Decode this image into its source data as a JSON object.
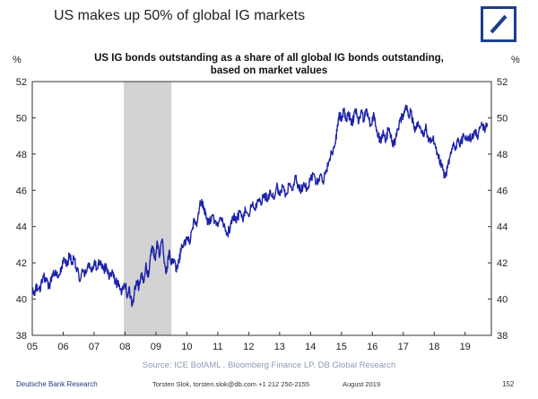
{
  "header": {
    "title": "US makes up 50% of global IG markets"
  },
  "footer": {
    "source": "Source: ICE BofAML , Bloomberg Finance LP, DB Global Research",
    "brand": "Deutsche Bank Research",
    "contact": "Torsten Slok, torsten.slok@db.com  +1 212 250-2155",
    "date": "August 2019",
    "page": "152"
  },
  "colors": {
    "line": "#1c22a8",
    "shade": "#d3d3d3",
    "logo": "#1b3f8b"
  },
  "chart_data": {
    "type": "line",
    "title": "US IG bonds outstanding as a share of all global IG bonds outstanding,\nbased on market values",
    "ylabel_left": "%",
    "ylabel_right": "%",
    "ylim": [
      38,
      52
    ],
    "yticks": [
      38,
      40,
      42,
      44,
      46,
      48,
      50,
      52
    ],
    "xlim": [
      2005,
      2019.85
    ],
    "xticks": [
      {
        "value": 2005,
        "label": "05"
      },
      {
        "value": 2006,
        "label": "06"
      },
      {
        "value": 2007,
        "label": "07"
      },
      {
        "value": 2008,
        "label": "08"
      },
      {
        "value": 2009,
        "label": "09"
      },
      {
        "value": 2010,
        "label": "10"
      },
      {
        "value": 2011,
        "label": "11"
      },
      {
        "value": 2012,
        "label": "12"
      },
      {
        "value": 2013,
        "label": "13"
      },
      {
        "value": 2014,
        "label": "14"
      },
      {
        "value": 2015,
        "label": "15"
      },
      {
        "value": 2016,
        "label": "16"
      },
      {
        "value": 2017,
        "label": "17"
      },
      {
        "value": 2018,
        "label": "18"
      },
      {
        "value": 2019,
        "label": "19"
      }
    ],
    "shaded_region": {
      "start": 2007.96,
      "end": 2009.5
    },
    "series": [
      {
        "color": "#1c22a8",
        "points": [
          [
            2005.0,
            40.6
          ],
          [
            2005.08,
            40.2
          ],
          [
            2005.15,
            40.8
          ],
          [
            2005.25,
            40.4
          ],
          [
            2005.35,
            41.3
          ],
          [
            2005.45,
            41.0
          ],
          [
            2005.55,
            40.7
          ],
          [
            2005.65,
            41.4
          ],
          [
            2005.75,
            41.6
          ],
          [
            2005.85,
            41.2
          ],
          [
            2005.95,
            41.8
          ],
          [
            2006.05,
            42.2
          ],
          [
            2006.12,
            41.8
          ],
          [
            2006.2,
            42.5
          ],
          [
            2006.28,
            42.0
          ],
          [
            2006.35,
            42.3
          ],
          [
            2006.45,
            41.6
          ],
          [
            2006.55,
            41.0
          ],
          [
            2006.62,
            41.5
          ],
          [
            2006.7,
            41.3
          ],
          [
            2006.8,
            41.9
          ],
          [
            2006.9,
            41.6
          ],
          [
            2007.0,
            42.0
          ],
          [
            2007.1,
            41.7
          ],
          [
            2007.2,
            42.1
          ],
          [
            2007.3,
            41.6
          ],
          [
            2007.4,
            41.8
          ],
          [
            2007.5,
            41.2
          ],
          [
            2007.6,
            41.5
          ],
          [
            2007.7,
            41.0
          ],
          [
            2007.8,
            40.7
          ],
          [
            2007.9,
            40.4
          ],
          [
            2008.0,
            40.8
          ],
          [
            2008.08,
            40.2
          ],
          [
            2008.15,
            40.5
          ],
          [
            2008.22,
            39.6
          ],
          [
            2008.3,
            40.3
          ],
          [
            2008.38,
            41.0
          ],
          [
            2008.45,
            40.6
          ],
          [
            2008.52,
            41.4
          ],
          [
            2008.6,
            41.0
          ],
          [
            2008.68,
            42.0
          ],
          [
            2008.75,
            41.2
          ],
          [
            2008.82,
            42.4
          ],
          [
            2008.9,
            42.8
          ],
          [
            2008.97,
            42.2
          ],
          [
            2009.05,
            43.1
          ],
          [
            2009.12,
            42.4
          ],
          [
            2009.2,
            43.3
          ],
          [
            2009.28,
            42.0
          ],
          [
            2009.35,
            41.5
          ],
          [
            2009.42,
            42.6
          ],
          [
            2009.5,
            41.9
          ],
          [
            2009.58,
            42.2
          ],
          [
            2009.66,
            41.5
          ],
          [
            2009.74,
            42.0
          ],
          [
            2009.82,
            42.8
          ],
          [
            2009.9,
            43.0
          ],
          [
            2010.0,
            43.4
          ],
          [
            2010.08,
            43.1
          ],
          [
            2010.16,
            43.8
          ],
          [
            2010.24,
            44.4
          ],
          [
            2010.32,
            44.0
          ],
          [
            2010.4,
            45.0
          ],
          [
            2010.48,
            45.5
          ],
          [
            2010.56,
            44.9
          ],
          [
            2010.64,
            44.4
          ],
          [
            2010.72,
            44.1
          ],
          [
            2010.8,
            44.6
          ],
          [
            2010.9,
            44.3
          ],
          [
            2011.0,
            44.0
          ],
          [
            2011.1,
            44.5
          ],
          [
            2011.2,
            44.1
          ],
          [
            2011.3,
            43.6
          ],
          [
            2011.4,
            43.9
          ],
          [
            2011.5,
            44.6
          ],
          [
            2011.6,
            44.2
          ],
          [
            2011.7,
            44.8
          ],
          [
            2011.8,
            44.4
          ],
          [
            2011.9,
            44.9
          ],
          [
            2012.0,
            44.6
          ],
          [
            2012.1,
            45.2
          ],
          [
            2012.2,
            45.0
          ],
          [
            2012.3,
            45.5
          ],
          [
            2012.4,
            45.2
          ],
          [
            2012.5,
            45.8
          ],
          [
            2012.6,
            45.5
          ],
          [
            2012.7,
            46.0
          ],
          [
            2012.8,
            45.6
          ],
          [
            2012.9,
            46.2
          ],
          [
            2013.0,
            45.9
          ],
          [
            2013.1,
            46.2
          ],
          [
            2013.2,
            45.8
          ],
          [
            2013.3,
            46.3
          ],
          [
            2013.4,
            46.0
          ],
          [
            2013.5,
            46.8
          ],
          [
            2013.6,
            46.3
          ],
          [
            2013.7,
            46.0
          ],
          [
            2013.8,
            46.3
          ],
          [
            2013.9,
            46.1
          ],
          [
            2014.0,
            46.6
          ],
          [
            2014.1,
            46.9
          ],
          [
            2014.2,
            46.4
          ],
          [
            2014.3,
            46.8
          ],
          [
            2014.4,
            46.5
          ],
          [
            2014.5,
            47.1
          ],
          [
            2014.6,
            47.6
          ],
          [
            2014.7,
            48.1
          ],
          [
            2014.8,
            48.6
          ],
          [
            2014.87,
            49.6
          ],
          [
            2014.93,
            50.3
          ],
          [
            2015.0,
            49.8
          ],
          [
            2015.08,
            50.4
          ],
          [
            2015.16,
            49.9
          ],
          [
            2015.24,
            50.2
          ],
          [
            2015.32,
            49.6
          ],
          [
            2015.4,
            50.0
          ],
          [
            2015.48,
            50.5
          ],
          [
            2015.56,
            49.7
          ],
          [
            2015.64,
            50.4
          ],
          [
            2015.72,
            49.9
          ],
          [
            2015.8,
            50.5
          ],
          [
            2015.88,
            50.0
          ],
          [
            2015.96,
            49.6
          ],
          [
            2016.04,
            50.3
          ],
          [
            2016.12,
            49.5
          ],
          [
            2016.2,
            49.0
          ],
          [
            2016.28,
            48.6
          ],
          [
            2016.36,
            49.2
          ],
          [
            2016.44,
            48.8
          ],
          [
            2016.52,
            49.4
          ],
          [
            2016.6,
            48.9
          ],
          [
            2016.68,
            48.4
          ],
          [
            2016.76,
            48.9
          ],
          [
            2016.84,
            49.4
          ],
          [
            2016.92,
            49.9
          ],
          [
            2017.0,
            50.2
          ],
          [
            2017.08,
            50.7
          ],
          [
            2017.16,
            50.1
          ],
          [
            2017.24,
            50.4
          ],
          [
            2017.32,
            49.8
          ],
          [
            2017.4,
            49.3
          ],
          [
            2017.48,
            49.8
          ],
          [
            2017.56,
            49.4
          ],
          [
            2017.64,
            49.0
          ],
          [
            2017.72,
            49.5
          ],
          [
            2017.8,
            49.0
          ],
          [
            2017.88,
            48.6
          ],
          [
            2017.96,
            48.9
          ],
          [
            2018.04,
            48.4
          ],
          [
            2018.12,
            48.0
          ],
          [
            2018.2,
            47.6
          ],
          [
            2018.28,
            47.1
          ],
          [
            2018.36,
            46.7
          ],
          [
            2018.44,
            47.4
          ],
          [
            2018.52,
            47.9
          ],
          [
            2018.6,
            48.5
          ],
          [
            2018.68,
            48.2
          ],
          [
            2018.76,
            48.7
          ],
          [
            2018.84,
            48.4
          ],
          [
            2018.92,
            48.9
          ],
          [
            2019.0,
            48.8
          ],
          [
            2019.1,
            49.0
          ],
          [
            2019.2,
            48.8
          ],
          [
            2019.3,
            49.2
          ],
          [
            2019.4,
            49.0
          ],
          [
            2019.48,
            49.4
          ],
          [
            2019.56,
            49.6
          ],
          [
            2019.64,
            49.2
          ],
          [
            2019.72,
            49.7
          ]
        ]
      }
    ]
  }
}
